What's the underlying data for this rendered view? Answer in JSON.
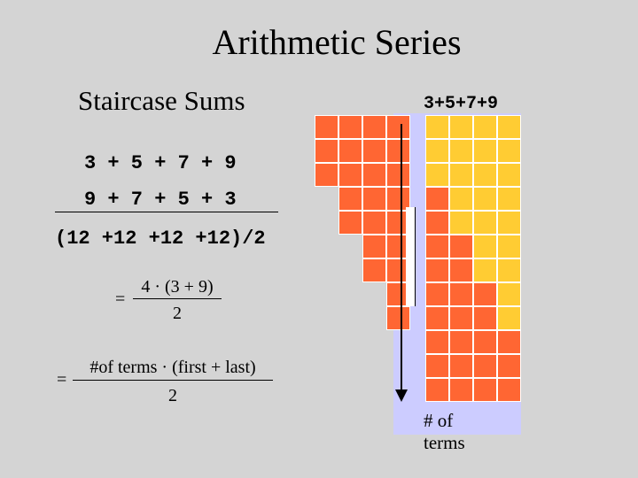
{
  "slide": {
    "title": "Arithmetic Series",
    "subtitle": "Staircase Sums"
  },
  "work": {
    "line1": "3 + 5 + 7 + 9",
    "line2": "9 + 7 + 5 + 3",
    "line3": "(12 +12 +12 +12)/2",
    "eq1": {
      "equals": "=",
      "numerator": "4 · (3 + 9)",
      "denominator": "2"
    },
    "eq2": {
      "equals": "=",
      "numerator": "#of terms · (first + last)",
      "denominator": "2"
    }
  },
  "figure": {
    "sum_label": "3+5+7+9",
    "axis_label": "# of terms",
    "terms": [
      3,
      5,
      7,
      9
    ],
    "max_height": 12,
    "colors": {
      "orange": "#ff6633",
      "yellow": "#ffcc33",
      "panel": "#ccccff",
      "grid_line": "#ffffff"
    }
  }
}
